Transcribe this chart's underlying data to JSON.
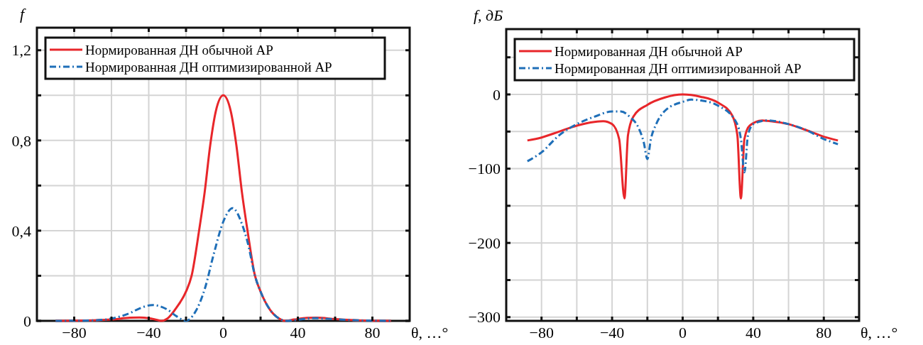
{
  "chart_data": [
    {
      "type": "line",
      "ylabel": "f",
      "xlabel": "θ, …°",
      "xlim": [
        -100,
        100
      ],
      "ylim": [
        0,
        1.3
      ],
      "xticks": [
        -80,
        {
          "value": -60,
          "label": null
        },
        -40,
        {
          "value": -20,
          "label": null
        },
        0,
        {
          "value": 20,
          "label": null
        },
        40,
        {
          "value": 60,
          "label": null
        },
        80
      ],
      "yticks": [
        0,
        {
          "value": 0.2,
          "label": null
        },
        {
          "value": 0.4,
          "label": "0,4"
        },
        {
          "value": 0.6,
          "label": null
        },
        {
          "value": 0.8,
          "label": "0,8"
        },
        {
          "value": 1.0,
          "label": null
        },
        {
          "value": 1.2,
          "label": "1,2"
        }
      ],
      "grid": true,
      "legend": "top",
      "marker": "none",
      "series": [
        {
          "name": "Нормированная ДН обычной АР",
          "color": "#e8262a",
          "line_style": "solid",
          "x": [
            -90,
            -70,
            -60,
            -50,
            -45,
            -40,
            -35,
            -33,
            -30,
            -25,
            -20,
            -17,
            -13,
            -10,
            -7,
            -4,
            0,
            4,
            7,
            10,
            13,
            17,
            20,
            25,
            30,
            33,
            38,
            45,
            50,
            60,
            70,
            80,
            90
          ],
          "values": [
            0,
            0.002,
            0.006,
            0.014,
            0.015,
            0.012,
            0.003,
            0,
            0.01,
            0.06,
            0.13,
            0.2,
            0.4,
            0.57,
            0.78,
            0.93,
            1.0,
            0.93,
            0.78,
            0.57,
            0.4,
            0.2,
            0.13,
            0.05,
            0.01,
            0,
            0.006,
            0.013,
            0.014,
            0.008,
            0.003,
            0.001,
            0
          ]
        },
        {
          "name": "Нормированная ДН оптимизированной АР",
          "color": "#1f6fb8",
          "line_style": "dashed",
          "x": [
            -90,
            -70,
            -60,
            -50,
            -45,
            -38,
            -30,
            -25,
            -20,
            -15,
            -10,
            -5,
            0,
            5,
            10,
            13,
            17,
            20,
            25,
            30,
            34,
            40,
            48,
            60,
            70,
            90
          ],
          "values": [
            0,
            0.002,
            0.01,
            0.035,
            0.055,
            0.07,
            0.05,
            0.02,
            0,
            0.04,
            0.14,
            0.3,
            0.44,
            0.5,
            0.43,
            0.35,
            0.2,
            0.13,
            0.05,
            0.01,
            0,
            0.005,
            0.012,
            0.007,
            0.003,
            0
          ]
        }
      ]
    },
    {
      "type": "line",
      "ylabel": "f, дБ",
      "xlabel": "θ, …°",
      "xlim": [
        -100,
        100
      ],
      "ylim": [
        -305,
        88
      ],
      "xticks": [
        -80,
        {
          "value": -60,
          "label": null
        },
        -40,
        {
          "value": -20,
          "label": null
        },
        0,
        {
          "value": 20,
          "label": null
        },
        40,
        {
          "value": 60,
          "label": null
        },
        80
      ],
      "yticks": [
        {
          "value": -300,
          "label": "−300"
        },
        {
          "value": -250,
          "label": null
        },
        {
          "value": -200,
          "label": "−200"
        },
        {
          "value": -150,
          "label": null
        },
        {
          "value": -100,
          "label": "−100"
        },
        {
          "value": -50,
          "label": null
        },
        0,
        {
          "value": 50,
          "label": null
        }
      ],
      "grid": true,
      "legend": "top",
      "marker": "none",
      "series": [
        {
          "name": "Нормированная ДН обычной АР",
          "color": "#e8262a",
          "line_style": "solid",
          "x": [
            -88,
            -80,
            -70,
            -60,
            -50,
            -45,
            -40,
            -36,
            -33,
            -31,
            -28,
            -20,
            -10,
            0,
            10,
            20,
            28,
            31,
            33,
            35,
            38,
            45,
            50,
            60,
            70,
            80,
            88
          ],
          "values": [
            -62,
            -58,
            -50,
            -42,
            -37,
            -36,
            -40,
            -60,
            -140,
            -55,
            -30,
            -14,
            -4,
            0,
            -3,
            -11,
            -28,
            -55,
            -140,
            -60,
            -42,
            -35,
            -36,
            -40,
            -48,
            -57,
            -62
          ]
        },
        {
          "name": "Нормированная ДН оптимизированной АР",
          "color": "#1f6fb8",
          "line_style": "dashed",
          "x": [
            -88,
            -80,
            -70,
            -60,
            -50,
            -40,
            -35,
            -30,
            -25,
            -22,
            -20,
            -18,
            -15,
            -10,
            0,
            5,
            10,
            20,
            30,
            33,
            35,
            37,
            40,
            48,
            60,
            70,
            80,
            88
          ],
          "values": [
            -90,
            -78,
            -55,
            -40,
            -30,
            -23,
            -23,
            -30,
            -45,
            -65,
            -87,
            -60,
            -40,
            -22,
            -10,
            -7,
            -8,
            -15,
            -36,
            -60,
            -105,
            -55,
            -40,
            -35,
            -40,
            -48,
            -60,
            -67
          ]
        }
      ]
    }
  ]
}
